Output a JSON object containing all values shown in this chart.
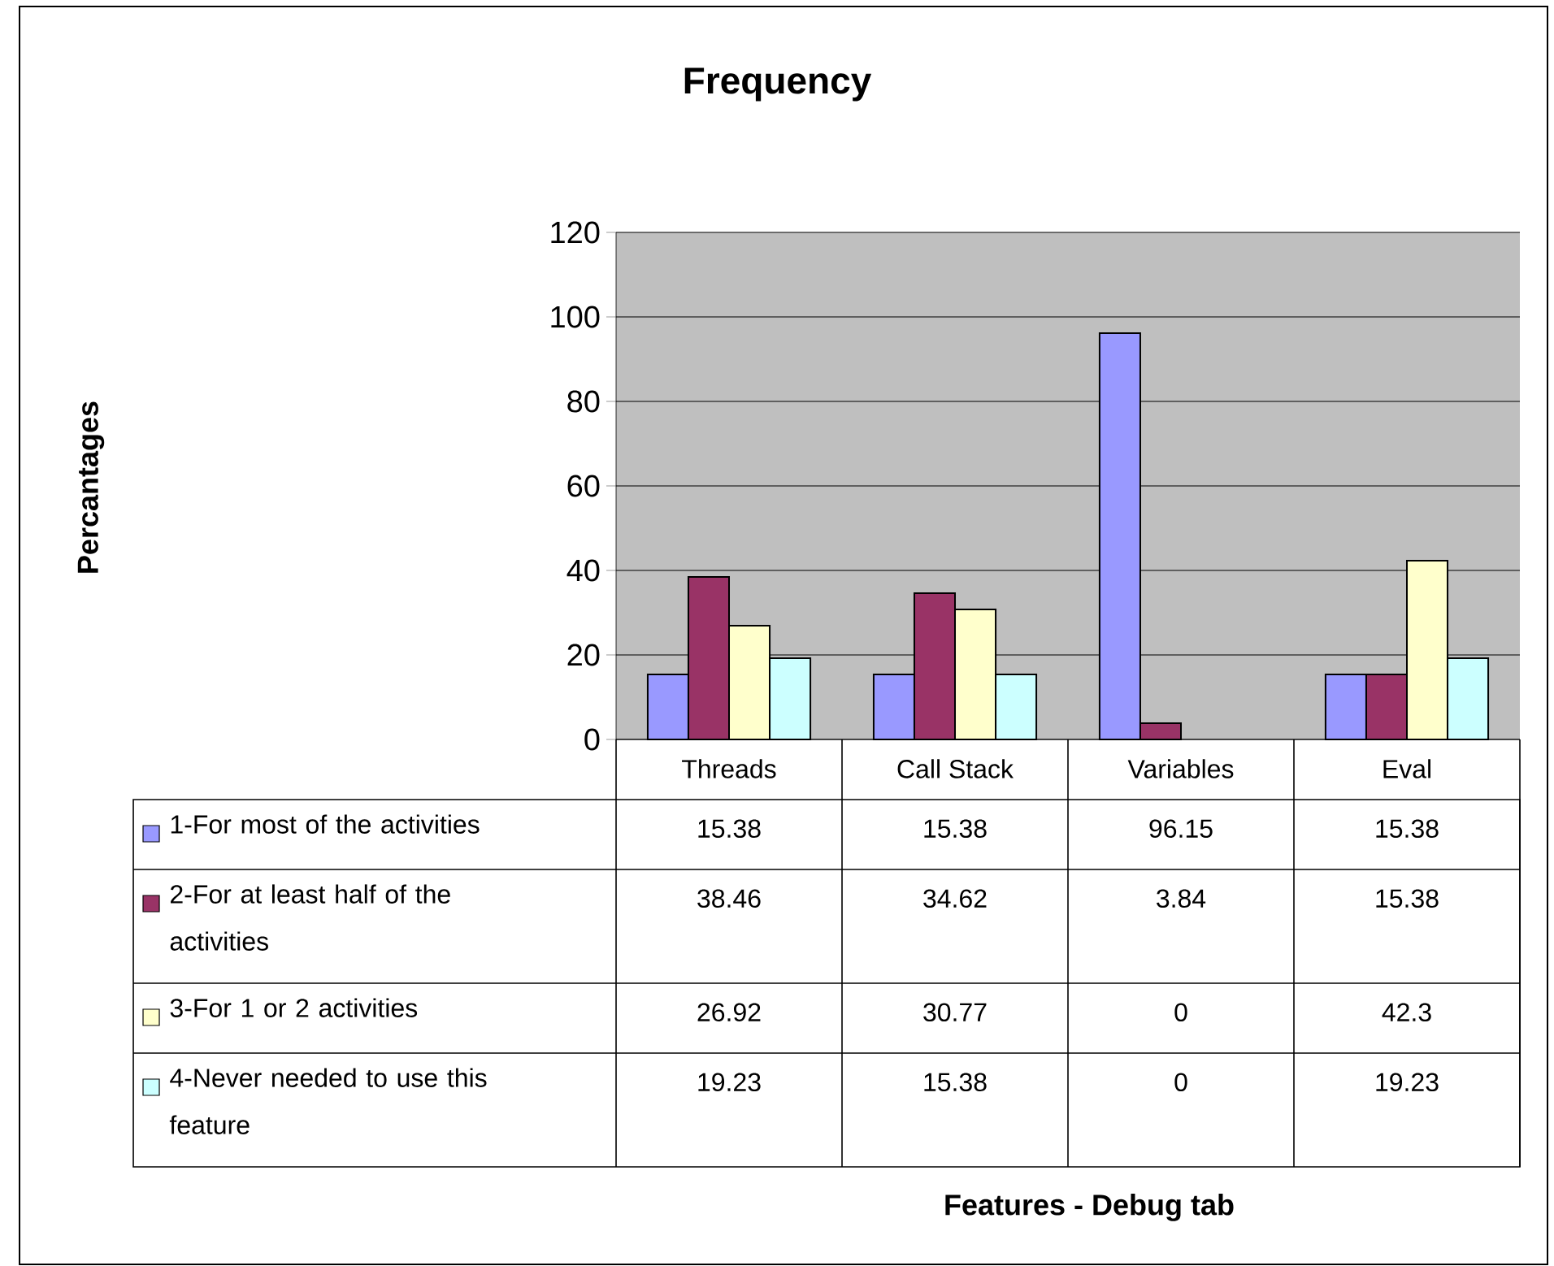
{
  "chart_data": {
    "type": "bar",
    "title": "Frequency",
    "annotations": [
      "Percantages",
      "Features - Debug tab"
    ],
    "categories": [
      "Threads",
      "Call Stack",
      "Variables",
      "Eval"
    ],
    "series": [
      {
        "name": "1-For most of the activities",
        "color": "#9999ff",
        "values": [
          15.38,
          15.38,
          96.15,
          15.38
        ]
      },
      {
        "name": "2-For at least half of the activities",
        "color": "#993366",
        "values": [
          38.46,
          34.62,
          3.84,
          15.38
        ]
      },
      {
        "name": "3-For 1 or 2 activities",
        "color": "#ffffcc",
        "values": [
          26.92,
          30.77,
          0,
          42.3
        ]
      },
      {
        "name": "4-Never needed to use this feature",
        "color": "#ccffff",
        "values": [
          19.23,
          15.38,
          0,
          19.23
        ]
      }
    ],
    "ylim": [
      0,
      120
    ],
    "yticks": [
      0,
      20,
      40,
      60,
      80,
      100,
      120
    ],
    "grid": "y",
    "legend": "bottom",
    "data_labels": true
  }
}
